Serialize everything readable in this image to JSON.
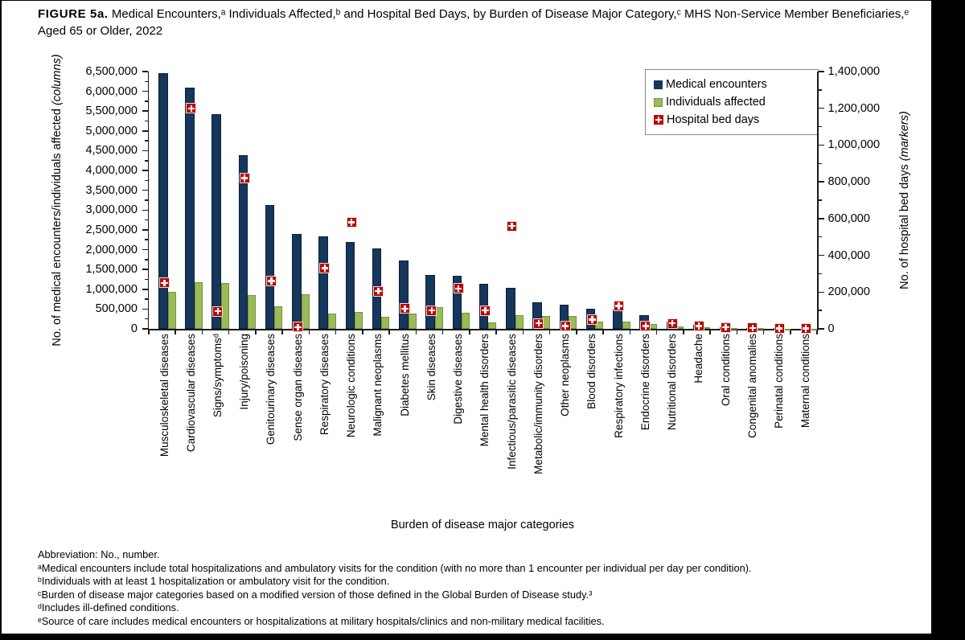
{
  "page": {
    "title_tag": "FIGURE 5a.",
    "title_text": " Medical Encounters,ᵃ Individuals Affected,ᵇ and Hospital Bed Days, by Burden of Disease Major Category,ᶜ MHS Non-Service Member Beneficiaries,ᵉ Aged 65 or Older, 2022"
  },
  "chart_data": {
    "type": "bar",
    "title": "Medical Encounters, Individuals Affected, and Hospital Bed Days, by Burden of Disease Major Category, MHS Non-Service Member Beneficiaries, Aged 65 or Older, 2022",
    "categories": [
      "Musculoskeletal diseases",
      "Cardiovascular diseases",
      "Signs/symptomsᵈ",
      "Injury/poisoning",
      "Genitourinary diseases",
      "Sense organ diseases",
      "Respiratory diseases",
      "Neurologic conditions",
      "Malignant neoplasms",
      "Diabetes mellitus",
      "Skin diseases",
      "Digestive diseases",
      "Mental health disorders",
      "Infectious/parasitic diseases",
      "Metabolic/immunity disorders",
      "Other neoplasms",
      "Blood disorders",
      "Respiratory infections",
      "Endocrine disorders",
      "Nutritional disorders",
      "Headache",
      "Oral conditions",
      "Congenital anomalies",
      "Perinatal conditions",
      "Maternal conditions"
    ],
    "series": [
      {
        "name": "Medical encounters",
        "kind": "column",
        "axis": "left",
        "color": "#16365C",
        "values": [
          6450000,
          6100000,
          5420000,
          4390000,
          3120000,
          2390000,
          2330000,
          2190000,
          2030000,
          1720000,
          1370000,
          1350000,
          1140000,
          1030000,
          680000,
          600000,
          510000,
          480000,
          350000,
          180000,
          110000,
          50000,
          30000,
          15000,
          10000
        ]
      },
      {
        "name": "Individuals affected",
        "kind": "column",
        "axis": "left",
        "color": "#9BBB59",
        "values": [
          930000,
          1170000,
          1150000,
          850000,
          570000,
          880000,
          390000,
          420000,
          310000,
          390000,
          540000,
          410000,
          170000,
          350000,
          330000,
          320000,
          190000,
          190000,
          130000,
          70000,
          50000,
          30000,
          20000,
          10000,
          5000
        ]
      },
      {
        "name": "Hospital bed days",
        "kind": "marker",
        "axis": "right",
        "color": "#C00000",
        "values": [
          250000,
          1200000,
          95000,
          820000,
          260000,
          10000,
          330000,
          580000,
          205000,
          110000,
          100000,
          220000,
          100000,
          560000,
          30000,
          15000,
          50000,
          125000,
          15000,
          30000,
          15000,
          8000,
          5000,
          3000,
          2000
        ]
      }
    ],
    "left_axis": {
      "label": "No. of medical encounters/individuals affected ",
      "label_italic": "(columns)",
      "min": 0,
      "max": 6500000,
      "major": 500000,
      "minor": 250000
    },
    "right_axis": {
      "label": "No. of hospital bed days ",
      "label_italic": "(markers)",
      "min": 0,
      "max": 1400000,
      "major": 200000,
      "minor": 100000
    },
    "xlabel": "Burden of disease major categories",
    "legend": {
      "position": "top-right"
    },
    "grid": false
  },
  "footnotes": [
    "Abbreviation: No., number.",
    "ᵃMedical encounters include total hospitalizations and ambulatory visits for the condition (with no more than 1 encounter per individual per day per condition).",
    "ᵇIndividuals with at least 1 hospitalization or ambulatory visit for the condition.",
    "ᶜBurden of disease major categories based on a modified version of those defined in the Global Burden of Disease study.³",
    "ᵈIncludes ill-defined conditions.",
    "ᵉSource of care includes medical encounters or hospitalizations at military hospitals/clinics and non-military medical facilities."
  ]
}
